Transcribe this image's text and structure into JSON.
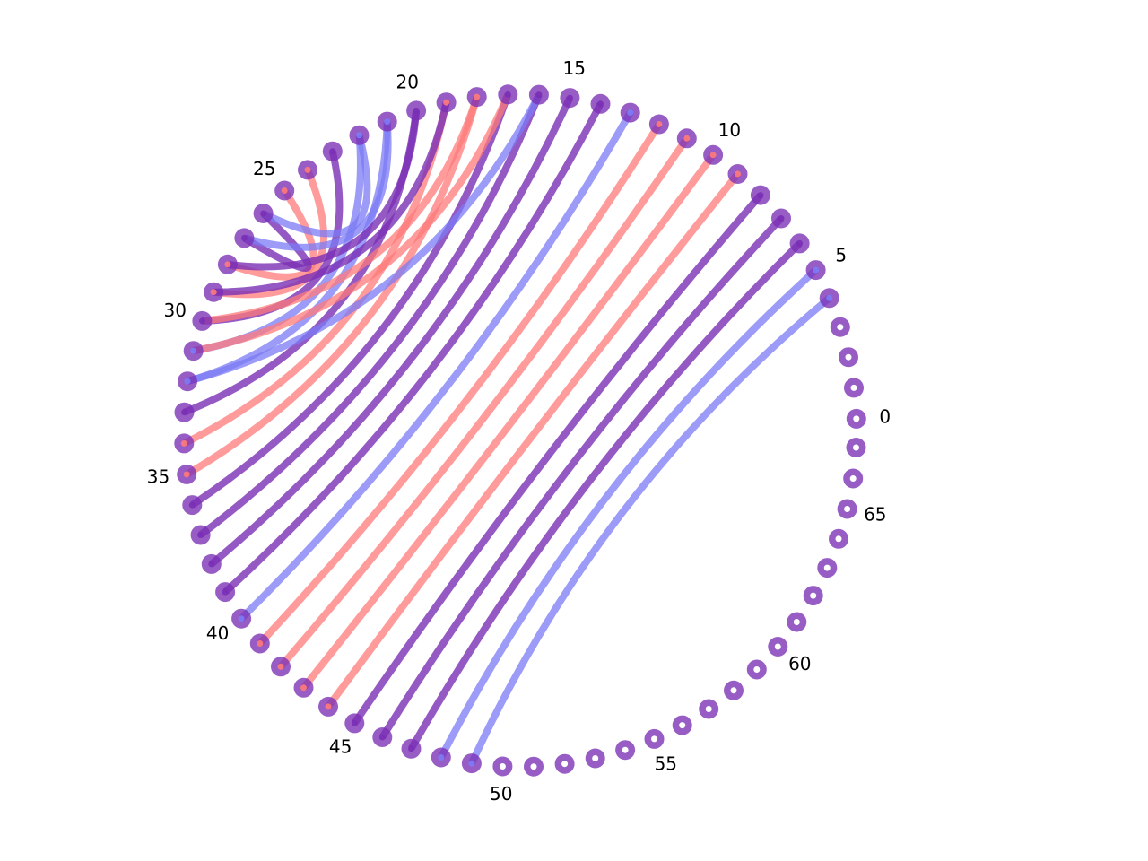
{
  "diagram": {
    "type": "arc_diagram",
    "node_count": 68,
    "node_color": "#7a2fb5",
    "node_center_color": "#ffffff",
    "link_colors": {
      "red": "#ff7a7a",
      "blue": "#7b7bf5",
      "purple": "#7a2fb5"
    },
    "tick_labels": [
      {
        "index": 0,
        "text": "0"
      },
      {
        "index": 5,
        "text": "5"
      },
      {
        "index": 10,
        "text": "10"
      },
      {
        "index": 15,
        "text": "15"
      },
      {
        "index": 20,
        "text": "20"
      },
      {
        "index": 25,
        "text": "25"
      },
      {
        "index": 30,
        "text": "30"
      },
      {
        "index": 35,
        "text": "35"
      },
      {
        "index": 40,
        "text": "40"
      },
      {
        "index": 45,
        "text": "45"
      },
      {
        "index": 50,
        "text": "50"
      },
      {
        "index": 55,
        "text": "55"
      },
      {
        "index": 60,
        "text": "60"
      },
      {
        "index": 65,
        "text": "65"
      }
    ],
    "links": [
      {
        "source": 4,
        "target": 49,
        "color": "blue"
      },
      {
        "source": 5,
        "target": 48,
        "color": "blue"
      },
      {
        "source": 6,
        "target": 47,
        "color": "purple"
      },
      {
        "source": 7,
        "target": 46,
        "color": "purple"
      },
      {
        "source": 8,
        "target": 45,
        "color": "purple"
      },
      {
        "source": 9,
        "target": 44,
        "color": "red"
      },
      {
        "source": 10,
        "target": 43,
        "color": "red"
      },
      {
        "source": 11,
        "target": 42,
        "color": "red"
      },
      {
        "source": 12,
        "target": 41,
        "color": "red"
      },
      {
        "source": 13,
        "target": 40,
        "color": "blue"
      },
      {
        "source": 14,
        "target": 39,
        "color": "purple"
      },
      {
        "source": 15,
        "target": 38,
        "color": "purple"
      },
      {
        "source": 16,
        "target": 37,
        "color": "purple"
      },
      {
        "source": 17,
        "target": 36,
        "color": "purple"
      },
      {
        "source": 18,
        "target": 35,
        "color": "red"
      },
      {
        "source": 19,
        "target": 34,
        "color": "red"
      },
      {
        "source": 20,
        "target": 33,
        "color": "purple"
      },
      {
        "source": 21,
        "target": 32,
        "color": "blue"
      },
      {
        "source": 22,
        "target": 31,
        "color": "blue"
      },
      {
        "source": 23,
        "target": 30,
        "color": "purple"
      },
      {
        "source": 24,
        "target": 29,
        "color": "red"
      },
      {
        "source": 25,
        "target": 28,
        "color": "red"
      },
      {
        "source": 26,
        "target": 27,
        "color": "purple"
      },
      {
        "source": 22,
        "target": 26,
        "color": "blue"
      },
      {
        "source": 21,
        "target": 27,
        "color": "blue"
      },
      {
        "source": 20,
        "target": 28,
        "color": "purple"
      },
      {
        "source": 19,
        "target": 29,
        "color": "purple"
      },
      {
        "source": 18,
        "target": 30,
        "color": "red"
      },
      {
        "source": 17,
        "target": 31,
        "color": "red"
      },
      {
        "source": 16,
        "target": 32,
        "color": "blue"
      }
    ]
  }
}
